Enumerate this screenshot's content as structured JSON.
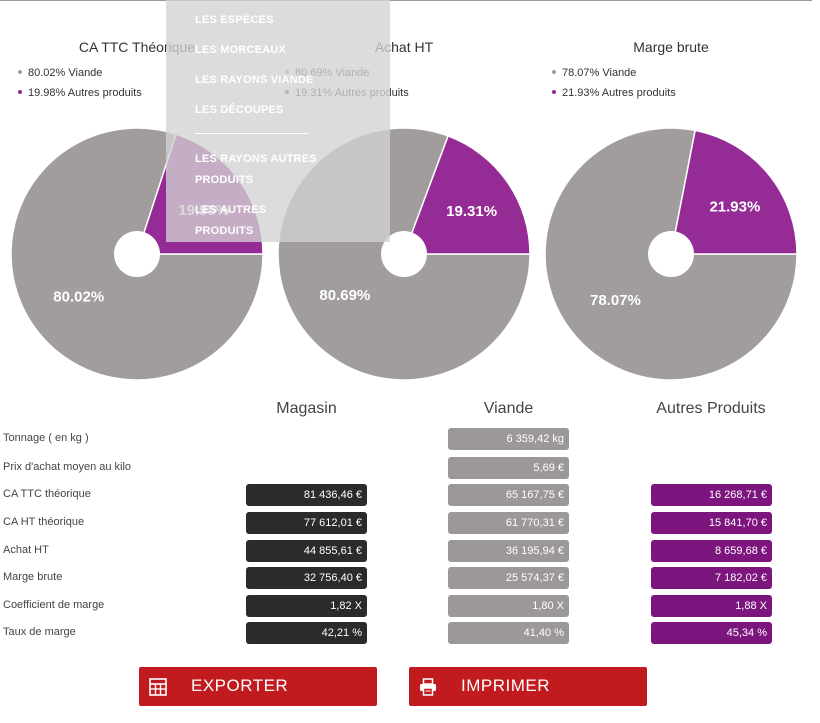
{
  "menu": {
    "items": [
      "LES ESPÈCES",
      "LES MORCEAUX",
      "LES RAYONS VIANDE",
      "LES DÉCOUPES",
      "LES RAYONS AUTRES PRODUITS",
      "LES AUTRES PRODUITS"
    ]
  },
  "colors": {
    "viande": "#a19d9c",
    "autres": "#952c96",
    "magasin_cell": "#2b2b2b",
    "viande_cell": "#9c9897",
    "autres_cell": "#7d157e",
    "button": "#c11b20"
  },
  "chart_data": [
    {
      "type": "pie",
      "title": "CA TTC Théorique",
      "legend_placement": "top",
      "categories": [
        "Viande",
        "Autres produits"
      ],
      "values": [
        80.02,
        19.98
      ],
      "legend": [
        "80.02% Viande",
        "19.98% Autres produits"
      ],
      "labels": [
        "80.02%",
        "19.98%"
      ]
    },
    {
      "type": "pie",
      "title": "Achat HT",
      "legend_placement": "top",
      "categories": [
        "Viande",
        "Autres produits"
      ],
      "values": [
        80.69,
        19.31
      ],
      "legend": [
        "80.69% Viande",
        "19.31% Autres produits"
      ],
      "labels": [
        "80.69%",
        "19.31%"
      ]
    },
    {
      "type": "pie",
      "title": "Marge brute",
      "legend_placement": "top",
      "categories": [
        "Viande",
        "Autres produits"
      ],
      "values": [
        78.07,
        21.93
      ],
      "legend": [
        "78.07% Viande",
        "21.93% Autres produits"
      ],
      "labels": [
        "78.07%",
        "21.93%"
      ]
    }
  ],
  "table": {
    "columns": [
      "Magasin",
      "Viande",
      "Autres Produits"
    ],
    "rows": [
      {
        "label": "Tonnage ( en kg )",
        "magasin": "",
        "viande": "6 359,42 kg",
        "autres": ""
      },
      {
        "label": "Prix d'achat moyen au kilo",
        "magasin": "",
        "viande": "5,69 €",
        "autres": ""
      },
      {
        "label": "CA TTC théorique",
        "magasin": "81 436,46 €",
        "viande": "65 167,75 €",
        "autres": "16 268,71 €"
      },
      {
        "label": "CA HT théorique",
        "magasin": "77 612,01 €",
        "viande": "61 770,31 €",
        "autres": "15 841,70 €"
      },
      {
        "label": "Achat HT",
        "magasin": "44 855,61 €",
        "viande": "36 195,94 €",
        "autres": "8 659,68 €"
      },
      {
        "label": "Marge brute",
        "magasin": "32 756,40 €",
        "viande": "25 574,37 €",
        "autres": "7 182,02 €"
      },
      {
        "label": "Coefficient de marge",
        "magasin": "1,82 X",
        "viande": "1,80 X",
        "autres": "1,88 X"
      },
      {
        "label": "Taux de marge",
        "magasin": "42,21 %",
        "viande": "41,40 %",
        "autres": "45,34 %"
      }
    ]
  },
  "buttons": {
    "export": {
      "label": "EXPORTER",
      "icon": "spreadsheet-icon"
    },
    "print": {
      "label": "IMPRIMER",
      "icon": "printer-icon"
    }
  }
}
